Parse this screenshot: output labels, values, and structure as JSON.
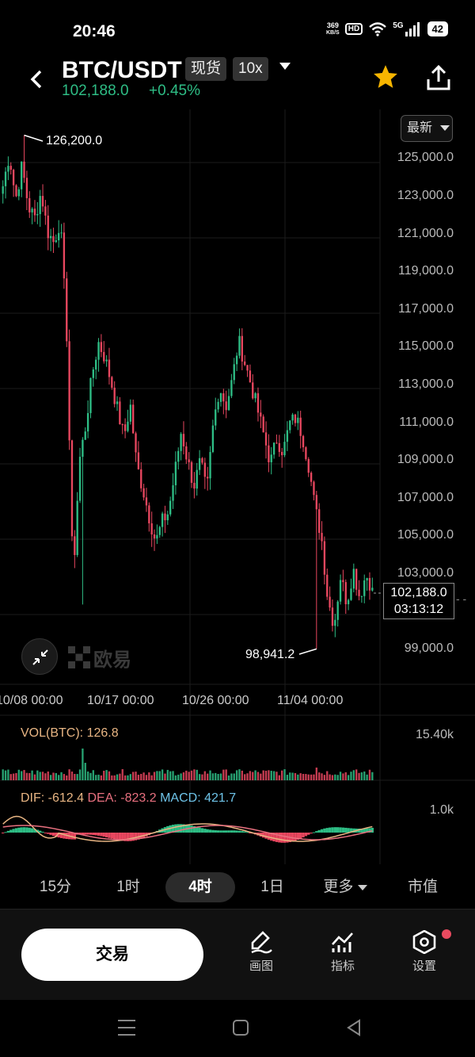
{
  "status_bar": {
    "time": "20:46",
    "net_speed_value": "369",
    "net_speed_unit": "KB/S",
    "hd": "HD",
    "network": "5G",
    "battery": "42"
  },
  "header": {
    "pair": "BTC/USDT",
    "market_tag": "现货",
    "leverage_tag": "10x",
    "last_price": "102,188.0",
    "change_percent": "+0.45%",
    "up_color": "#2ebd85",
    "down_color": "#e8475f",
    "star_color": "#f7b500"
  },
  "chart": {
    "latest_button": "最新",
    "price_axis": [
      "125,000.0",
      "123,000.0",
      "121,000.0",
      "119,000.0",
      "117,000.0",
      "115,000.0",
      "113,000.0",
      "111,000.0",
      "109,000.0",
      "107,000.0",
      "105,000.0",
      "103,000.0",
      "99,000.0"
    ],
    "date_axis": [
      "10/08 00:00",
      "10/17 00:00",
      "10/26 00:00",
      "11/04 00:00"
    ],
    "high_label": "126,200.0",
    "low_label": "98,941.2",
    "current_price": "102,188.0",
    "countdown": "03:13:12",
    "logo_text": "欧易"
  },
  "chart_data": {
    "type": "candlestick",
    "symbol": "BTC/USDT",
    "interval": "4时",
    "ylim": [
      98000,
      126800
    ],
    "high": 126200.0,
    "low": 98941.2,
    "last": 102188.0,
    "x_ticks": [
      "10/08 00:00",
      "10/17 00:00",
      "10/26 00:00",
      "11/04 00:00"
    ],
    "close_path": [
      123500,
      125200,
      122800,
      124600,
      122400,
      121800,
      123200,
      121100,
      120500,
      121700,
      115800,
      102500,
      108900,
      110800,
      113500,
      115200,
      114400,
      113100,
      111600,
      110200,
      111900,
      108700,
      107400,
      105900,
      104600,
      105700,
      106200,
      108300,
      110500,
      108900,
      107600,
      108900,
      107200,
      110800,
      112900,
      111800,
      113200,
      115300,
      114100,
      112900,
      111600,
      110200,
      108800,
      110100,
      109400,
      110900,
      111200,
      110300,
      108700,
      106400,
      104900,
      101600,
      100200,
      102800,
      101400,
      103200,
      101700,
      102900,
      102188
    ],
    "volume_label": "VOL(BTC): 126.8",
    "volume_axis_max": "15.40k",
    "macd_label_dif": "DIF: -612.4",
    "macd_label_dea": "DEA: -823.2",
    "macd_label_macd": "MACD: 421.7",
    "macd_axis": "1.0k"
  },
  "timeframes": {
    "items": [
      "15分",
      "1时",
      "4时",
      "1日",
      "更多"
    ],
    "market_cap": "市值",
    "active": "4时"
  },
  "toolbar": {
    "trade": "交易",
    "draw": "画图",
    "indicators": "指标",
    "settings": "设置"
  }
}
